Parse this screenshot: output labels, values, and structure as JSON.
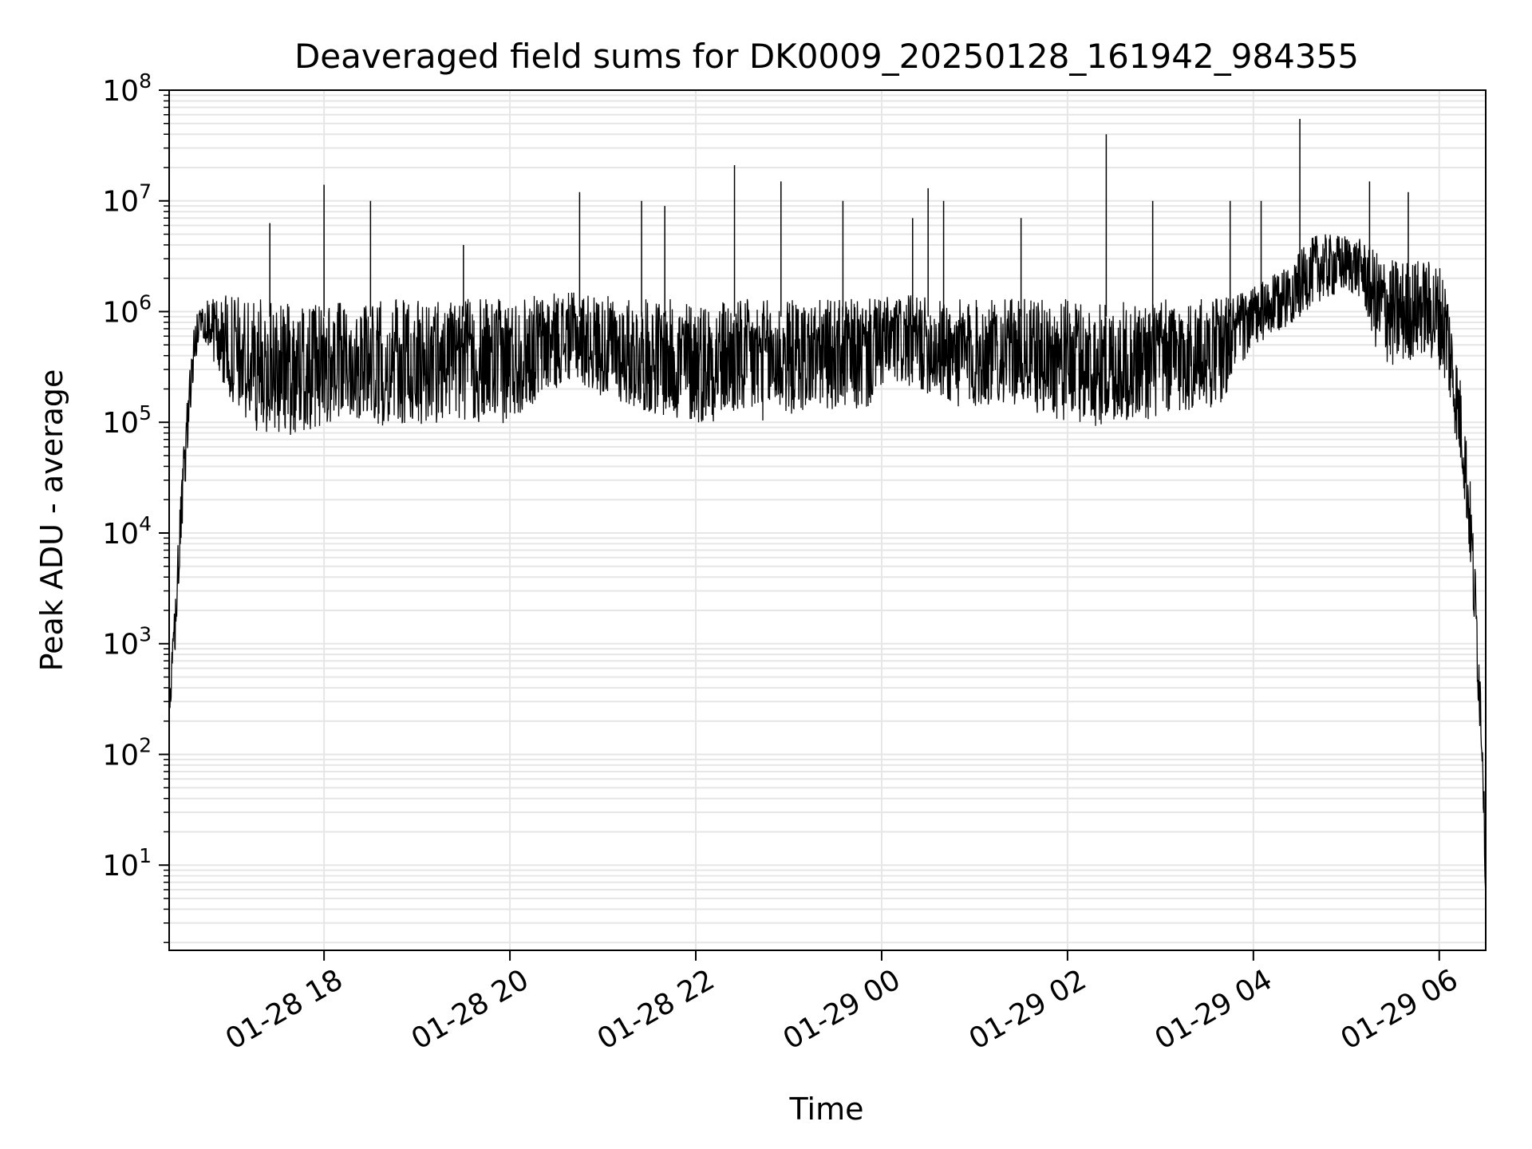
{
  "chart_data": {
    "type": "line",
    "title": "Deaveraged field sums for DK0009_20250128_161942_984355",
    "xlabel": "Time",
    "ylabel": "Peak ADU - average",
    "yscale": "log",
    "ylim": [
      1.7,
      100000000
    ],
    "xlim": [
      "2025-01-28 16:20",
      "2025-01-29 06:30"
    ],
    "grid": true,
    "line_color": "#000000",
    "grid_color": "#e6e6e6",
    "x_ticks": [
      {
        "label": "01-28 18",
        "time": "2025-01-28 18:00"
      },
      {
        "label": "01-28 20",
        "time": "2025-01-28 20:00"
      },
      {
        "label": "01-28 22",
        "time": "2025-01-28 22:00"
      },
      {
        "label": "01-29 00",
        "time": "2025-01-29 00:00"
      },
      {
        "label": "01-29 02",
        "time": "2025-01-29 02:00"
      },
      {
        "label": "01-29 04",
        "time": "2025-01-29 04:00"
      },
      {
        "label": "01-29 06",
        "time": "2025-01-29 06:00"
      }
    ],
    "y_ticks": [
      {
        "base": "10",
        "exp": "1",
        "value": 10
      },
      {
        "base": "10",
        "exp": "2",
        "value": 100
      },
      {
        "base": "10",
        "exp": "3",
        "value": 1000
      },
      {
        "base": "10",
        "exp": "4",
        "value": 10000
      },
      {
        "base": "10",
        "exp": "5",
        "value": 100000
      },
      {
        "base": "10",
        "exp": "6",
        "value": 1000000
      },
      {
        "base": "10",
        "exp": "7",
        "value": 10000000
      },
      {
        "base": "10",
        "exp": "8",
        "value": 100000000
      }
    ],
    "series": [
      {
        "x": [
          "2025-01-28 16:20",
          "2025-01-28 16:24",
          "2025-01-28 16:28",
          "2025-01-28 16:32",
          "2025-01-28 16:36",
          "2025-01-28 16:40",
          "2025-01-28 16:45",
          "2025-01-28 16:50",
          "2025-01-28 16:55",
          "2025-01-28 17:00",
          "2025-01-28 17:10",
          "2025-01-28 17:20",
          "2025-01-28 17:30",
          "2025-01-28 17:40",
          "2025-01-28 17:50",
          "2025-01-28 18:00",
          "2025-01-28 18:10",
          "2025-01-28 18:20",
          "2025-01-28 18:30",
          "2025-01-28 18:40",
          "2025-01-28 18:50",
          "2025-01-28 19:00",
          "2025-01-28 19:10",
          "2025-01-28 19:20",
          "2025-01-28 19:30",
          "2025-01-28 19:40",
          "2025-01-28 19:50",
          "2025-01-28 20:00",
          "2025-01-28 20:10",
          "2025-01-28 20:20",
          "2025-01-28 20:30",
          "2025-01-28 20:40",
          "2025-01-28 20:50",
          "2025-01-28 21:00",
          "2025-01-28 21:10",
          "2025-01-28 21:20",
          "2025-01-28 21:30",
          "2025-01-28 21:40",
          "2025-01-28 21:50",
          "2025-01-28 22:00",
          "2025-01-28 22:10",
          "2025-01-28 22:20",
          "2025-01-28 22:30",
          "2025-01-28 22:40",
          "2025-01-28 22:50",
          "2025-01-28 23:00",
          "2025-01-28 23:10",
          "2025-01-28 23:20",
          "2025-01-28 23:30",
          "2025-01-28 23:40",
          "2025-01-28 23:50",
          "2025-01-29 00:00",
          "2025-01-29 00:10",
          "2025-01-29 00:20",
          "2025-01-29 00:30",
          "2025-01-29 00:40",
          "2025-01-29 00:50",
          "2025-01-29 01:00",
          "2025-01-29 01:10",
          "2025-01-29 01:20",
          "2025-01-29 01:30",
          "2025-01-29 01:40",
          "2025-01-29 01:50",
          "2025-01-29 02:00",
          "2025-01-29 02:10",
          "2025-01-29 02:20",
          "2025-01-29 02:30",
          "2025-01-29 02:40",
          "2025-01-29 02:50",
          "2025-01-29 03:00",
          "2025-01-29 03:10",
          "2025-01-29 03:20",
          "2025-01-29 03:30",
          "2025-01-29 03:40",
          "2025-01-29 03:50",
          "2025-01-29 04:00",
          "2025-01-29 04:10",
          "2025-01-29 04:20",
          "2025-01-29 04:30",
          "2025-01-29 04:40",
          "2025-01-29 04:50",
          "2025-01-29 05:00",
          "2025-01-29 05:10",
          "2025-01-29 05:20",
          "2025-01-29 05:30",
          "2025-01-29 05:40",
          "2025-01-29 05:50",
          "2025-01-29 06:00",
          "2025-01-29 06:05",
          "2025-01-29 06:10",
          "2025-01-29 06:15",
          "2025-01-29 06:20",
          "2025-01-29 06:25",
          "2025-01-29 06:28",
          "2025-01-29 06:30"
        ],
        "low": [
          150,
          900,
          8000,
          60000,
          250000,
          600000,
          500000,
          300000,
          200000,
          150000,
          90000,
          80000,
          80000,
          75000,
          80000,
          90000,
          100000,
          110000,
          100000,
          90000,
          85000,
          90000,
          95000,
          110000,
          100000,
          95000,
          90000,
          100000,
          130000,
          160000,
          200000,
          250000,
          200000,
          170000,
          150000,
          130000,
          120000,
          110000,
          100000,
          95000,
          100000,
          110000,
          105000,
          100000,
          110000,
          115000,
          120000,
          130000,
          130000,
          125000,
          120000,
          200000,
          210000,
          200000,
          180000,
          150000,
          130000,
          130000,
          140000,
          150000,
          140000,
          120000,
          110000,
          100000,
          95000,
          90000,
          95000,
          100000,
          100000,
          110000,
          115000,
          120000,
          130000,
          150000,
          300000,
          450000,
          550000,
          700000,
          900000,
          1200000,
          1300000,
          1500000,
          1300000,
          400000,
          300000,
          350000,
          400000,
          300000,
          200000,
          80000,
          30000,
          5000,
          300,
          60,
          4
        ],
        "high": [
          300,
          3000,
          30000,
          200000,
          800000,
          1200000,
          1300000,
          1400000,
          1400000,
          1400000,
          1300000,
          1300000,
          1200000,
          1200000,
          1200000,
          1200000,
          1200000,
          1250000,
          1250000,
          1300000,
          1300000,
          1300000,
          1300000,
          1300000,
          1300000,
          1300000,
          1300000,
          1350000,
          1400000,
          1450000,
          1500000,
          1500000,
          1450000,
          1400000,
          1350000,
          1300000,
          1300000,
          1300000,
          1300000,
          1300000,
          1300000,
          1300000,
          1300000,
          1300000,
          1300000,
          1300000,
          1300000,
          1300000,
          1300000,
          1300000,
          1300000,
          1350000,
          1400000,
          1400000,
          1350000,
          1300000,
          1300000,
          1300000,
          1300000,
          1300000,
          1300000,
          1300000,
          1300000,
          1300000,
          1250000,
          1200000,
          1200000,
          1250000,
          1250000,
          1300000,
          1300000,
          1300000,
          1350000,
          1400000,
          1500000,
          1700000,
          2000000,
          2500000,
          3500000,
          5000000,
          5000000,
          5000000,
          4500000,
          3500000,
          3000000,
          3000000,
          3000000,
          2800000,
          2000000,
          500000,
          200000,
          30000,
          2000,
          200,
          10
        ]
      }
    ],
    "spikes": [
      {
        "time": "2025-01-28 17:25",
        "peak": 6300000
      },
      {
        "time": "2025-01-28 18:00",
        "peak": 14000000
      },
      {
        "time": "2025-01-28 18:30",
        "peak": 10000000
      },
      {
        "time": "2025-01-28 19:30",
        "peak": 4000000
      },
      {
        "time": "2025-01-28 20:45",
        "peak": 12000000
      },
      {
        "time": "2025-01-28 21:25",
        "peak": 10000000
      },
      {
        "time": "2025-01-28 21:40",
        "peak": 9000000
      },
      {
        "time": "2025-01-28 22:25",
        "peak": 21000000
      },
      {
        "time": "2025-01-28 22:55",
        "peak": 15000000
      },
      {
        "time": "2025-01-28 23:35",
        "peak": 10000000
      },
      {
        "time": "2025-01-29 00:20",
        "peak": 7000000
      },
      {
        "time": "2025-01-29 00:30",
        "peak": 13000000
      },
      {
        "time": "2025-01-29 00:40",
        "peak": 10000000
      },
      {
        "time": "2025-01-29 01:30",
        "peak": 7000000
      },
      {
        "time": "2025-01-29 02:25",
        "peak": 40000000
      },
      {
        "time": "2025-01-29 02:55",
        "peak": 10000000
      },
      {
        "time": "2025-01-29 03:45",
        "peak": 10000000
      },
      {
        "time": "2025-01-29 04:05",
        "peak": 10000000
      },
      {
        "time": "2025-01-29 04:30",
        "peak": 55000000
      },
      {
        "time": "2025-01-29 05:15",
        "peak": 15000000
      },
      {
        "time": "2025-01-29 05:40",
        "peak": 12000000
      }
    ]
  }
}
